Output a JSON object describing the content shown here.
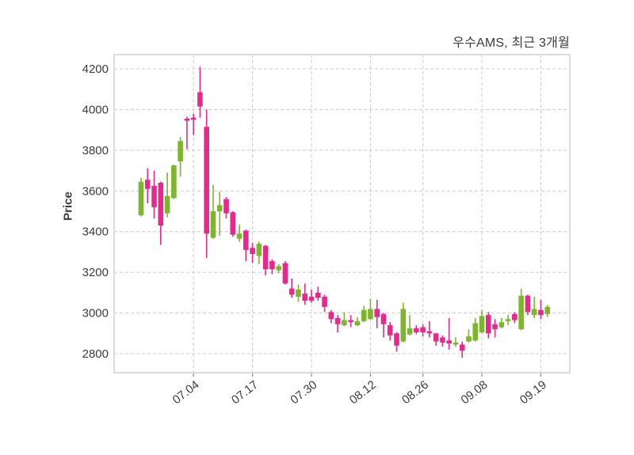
{
  "title": "우수AMS, 최근 3개월",
  "chart_data": {
    "type": "candlestick",
    "title": "우수AMS, 최근 3개월",
    "ylabel": "Price",
    "y_ticks": [
      2800,
      3000,
      3200,
      3400,
      3600,
      3800,
      4000,
      4200
    ],
    "ylim": [
      2706,
      4274
    ],
    "x_tick_labels": [
      "07.04",
      "07.17",
      "07.30",
      "08.12",
      "08.26",
      "09.08",
      "09.19"
    ],
    "x_tick_indices": [
      8,
      17,
      26,
      35,
      43,
      52,
      61
    ],
    "grid": "dashed",
    "legend_position": "none",
    "colors": {
      "up": "#7db62c",
      "down": "#e62a8d",
      "grid": "#cfcfcf",
      "frame": "#dcdcdc",
      "text": "#3c3c3c"
    },
    "candles_format": [
      "open",
      "high",
      "low",
      "close"
    ],
    "candles": [
      [
        3480,
        3665,
        3475,
        3645
      ],
      [
        3655,
        3710,
        3540,
        3610
      ],
      [
        3625,
        3700,
        3465,
        3520
      ],
      [
        3640,
        3645,
        3335,
        3430
      ],
      [
        3490,
        3690,
        3470,
        3575
      ],
      [
        3565,
        3730,
        3560,
        3725
      ],
      [
        3745,
        3865,
        3670,
        3845
      ],
      [
        3955,
        3965,
        3805,
        3945
      ],
      [
        3960,
        3980,
        3875,
        3950
      ],
      [
        4085,
        4210,
        3960,
        4015
      ],
      [
        3915,
        4000,
        3270,
        3390
      ],
      [
        3370,
        3630,
        3365,
        3500
      ],
      [
        3500,
        3595,
        3380,
        3530
      ],
      [
        3560,
        3570,
        3465,
        3490
      ],
      [
        3495,
        3500,
        3375,
        3385
      ],
      [
        3365,
        3435,
        3350,
        3390
      ],
      [
        3405,
        3410,
        3255,
        3310
      ],
      [
        3320,
        3345,
        3245,
        3290
      ],
      [
        3280,
        3350,
        3240,
        3340
      ],
      [
        3330,
        3335,
        3185,
        3215
      ],
      [
        3255,
        3265,
        3190,
        3215
      ],
      [
        3210,
        3240,
        3195,
        3230
      ],
      [
        3245,
        3255,
        3140,
        3145
      ],
      [
        3120,
        3170,
        3075,
        3090
      ],
      [
        3080,
        3140,
        3055,
        3115
      ],
      [
        3095,
        3145,
        3040,
        3060
      ],
      [
        3080,
        3115,
        3050,
        3060
      ],
      [
        3100,
        3130,
        3060,
        3075
      ],
      [
        3080,
        3090,
        3005,
        3030
      ],
      [
        3005,
        3015,
        2950,
        2970
      ],
      [
        2975,
        2990,
        2905,
        2945
      ],
      [
        2940,
        3005,
        2935,
        2965
      ],
      [
        2965,
        2990,
        2930,
        2955
      ],
      [
        2940,
        2980,
        2935,
        2960
      ],
      [
        2960,
        3035,
        2955,
        3015
      ],
      [
        2970,
        3070,
        2965,
        3020
      ],
      [
        3020,
        3065,
        2925,
        2980
      ],
      [
        2995,
        3000,
        2880,
        2945
      ],
      [
        2940,
        2955,
        2865,
        2890
      ],
      [
        2900,
        2905,
        2810,
        2840
      ],
      [
        2860,
        3050,
        2855,
        3020
      ],
      [
        2895,
        2990,
        2890,
        2925
      ],
      [
        2925,
        2940,
        2895,
        2905
      ],
      [
        2930,
        2945,
        2885,
        2905
      ],
      [
        2910,
        2960,
        2880,
        2900
      ],
      [
        2900,
        2900,
        2840,
        2860
      ],
      [
        2880,
        2890,
        2835,
        2855
      ],
      [
        2865,
        2975,
        2820,
        2850
      ],
      [
        2845,
        2880,
        2835,
        2855
      ],
      [
        2845,
        2860,
        2780,
        2815
      ],
      [
        2860,
        2920,
        2855,
        2885
      ],
      [
        2865,
        2975,
        2860,
        2950
      ],
      [
        2905,
        3015,
        2900,
        2985
      ],
      [
        2990,
        3005,
        2875,
        2900
      ],
      [
        2945,
        2970,
        2880,
        2920
      ],
      [
        2930,
        2975,
        2925,
        2955
      ],
      [
        2960,
        2990,
        2940,
        2970
      ],
      [
        2995,
        3005,
        2950,
        2965
      ],
      [
        2920,
        3120,
        2915,
        3085
      ],
      [
        3085,
        3090,
        2990,
        3005
      ],
      [
        2990,
        3080,
        2975,
        3020
      ],
      [
        3015,
        3065,
        2970,
        2990
      ],
      [
        2995,
        3040,
        2980,
        3030
      ]
    ]
  }
}
